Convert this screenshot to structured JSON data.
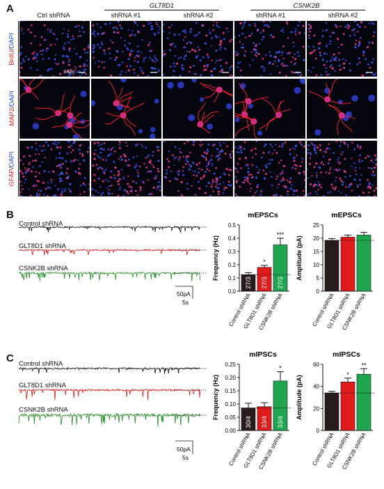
{
  "panel_labels": [
    "A",
    "B",
    "C"
  ],
  "panelA": {
    "groups": [
      "GLT8D1",
      "CSNK2B"
    ],
    "columns": [
      "Ctrl shRNA",
      "shRNA #1",
      "shRNA #2",
      "shRNA #1",
      "shRNA #2"
    ],
    "rows": [
      {
        "a": "BrdU",
        "sep": "/",
        "b": "DAPI"
      },
      {
        "a": "MAP2",
        "sep": "/",
        "b": "DAPI"
      },
      {
        "a": "GFAP",
        "sep": "/",
        "b": "DAPI"
      }
    ],
    "scalebar_label": "50μm"
  },
  "panelB": {
    "traces": [
      "Control shRNA",
      "GLT8D1 shRNA",
      "CSNK2B shRNA"
    ],
    "trace_colors": [
      "#111111",
      "#e01b1b",
      "#1f8c1f"
    ],
    "scale_amp": "50pA",
    "scale_time": "5s"
  },
  "panelC": {
    "traces": [
      "Control shRNA",
      "GLT8D1 shRNA",
      "CSNK2B shRNA"
    ],
    "trace_colors": [
      "#111111",
      "#e01b1b",
      "#1f8c1f"
    ],
    "scale_amp": "50pA",
    "scale_time": "5s"
  },
  "chart_data": [
    {
      "type": "bar",
      "title": "mEPSCs",
      "ylabel": "Frequency (Hz)",
      "categories": [
        "Control shRNA",
        "GLT8D1 shRNA",
        "CSNK2B shRNA"
      ],
      "values": [
        0.125,
        0.18,
        0.35
      ],
      "errors": [
        0.015,
        0.015,
        0.05
      ],
      "ylim": [
        0,
        0.5
      ],
      "yticks": [
        "0.0",
        "0.1",
        "0.2",
        "0.3",
        "0.4",
        "0.5"
      ],
      "ytick_values": [
        0,
        0.1,
        0.2,
        0.3,
        0.4,
        0.5
      ],
      "bar_labels": [
        "27/3",
        "27/3",
        "27/3"
      ],
      "significance": [
        "",
        "*",
        "***"
      ],
      "colors": [
        "#2a1c1c",
        "#e01b1b",
        "#1ea54f"
      ],
      "baseline": 0.125
    },
    {
      "type": "bar",
      "title": "mEPSCs",
      "ylabel": "Amplitude (pA)",
      "categories": [
        "Control shRNA",
        "GLT8D1 shRNA",
        "CSNK2B shRNA"
      ],
      "values": [
        19.2,
        20.4,
        21.2
      ],
      "errors": [
        0.7,
        0.8,
        1.0
      ],
      "ylim": [
        0,
        25
      ],
      "yticks": [
        "0",
        "5",
        "10",
        "15",
        "20",
        "25"
      ],
      "ytick_values": [
        0,
        5,
        10,
        15,
        20,
        25
      ],
      "bar_labels": [
        "",
        "",
        ""
      ],
      "significance": [
        "",
        "",
        ""
      ],
      "colors": [
        "#2a1c1c",
        "#e01b1b",
        "#1ea54f"
      ],
      "baseline": 19.2
    },
    {
      "type": "bar",
      "title": "mIPSCs",
      "ylabel": "Frequency (Hz)",
      "categories": [
        "Control shRNA",
        "GLT8D1 shRNA",
        "CSNK2B shRNA"
      ],
      "values": [
        0.085,
        0.09,
        0.187
      ],
      "errors": [
        0.018,
        0.015,
        0.035
      ],
      "ylim": [
        0,
        0.25
      ],
      "yticks": [
        "0.00",
        "0.05",
        "0.10",
        "0.15",
        "0.20",
        "0.25"
      ],
      "ytick_values": [
        0,
        0.05,
        0.1,
        0.15,
        0.2,
        0.25
      ],
      "bar_labels": [
        "30/4",
        "33/4",
        "33/4"
      ],
      "significance": [
        "",
        "",
        "*"
      ],
      "colors": [
        "#2a1c1c",
        "#e01b1b",
        "#1ea54f"
      ],
      "baseline": 0.085
    },
    {
      "type": "bar",
      "title": "mIPSCs",
      "ylabel": "Amplitude (pA)",
      "categories": [
        "Control shRNA",
        "GLT8D1 shRNA",
        "CSNK2B shRNA"
      ],
      "values": [
        34,
        44,
        51
      ],
      "errors": [
        1.5,
        3.5,
        5
      ],
      "ylim": [
        0,
        60
      ],
      "yticks": [
        "0",
        "20",
        "40",
        "60"
      ],
      "ytick_values": [
        0,
        20,
        40,
        60
      ],
      "bar_labels": [
        "",
        "",
        ""
      ],
      "significance": [
        "",
        "*",
        "**"
      ],
      "colors": [
        "#2a1c1c",
        "#e01b1b",
        "#1ea54f"
      ],
      "baseline": 34
    }
  ]
}
